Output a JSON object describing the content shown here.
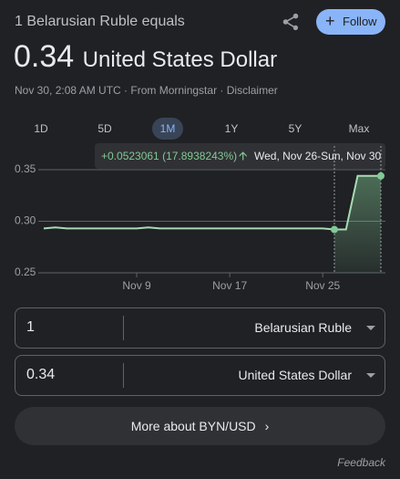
{
  "header": {
    "title": "1 Belarusian Ruble equals",
    "value": "0.34",
    "unit": "United States Dollar",
    "source": "Nov 30, 2:08 AM UTC · From Morningstar · ",
    "disclaimer": "Disclaimer",
    "follow": "Follow"
  },
  "tabs": [
    "1D",
    "5D",
    "1M",
    "1Y",
    "5Y",
    "Max"
  ],
  "tooltip": {
    "change": "+0.0523061 (17.8938243%)",
    "range": "Wed, Nov 26-Sun, Nov 30"
  },
  "chart_data": {
    "type": "line",
    "categories": [
      null,
      null,
      null,
      null,
      null,
      null,
      null,
      null,
      "Nov 9",
      null,
      null,
      null,
      null,
      null,
      null,
      null,
      "Nov 17",
      null,
      null,
      null,
      null,
      null,
      null,
      null,
      "Nov 25",
      null,
      null,
      null,
      null,
      null
    ],
    "series": [
      {
        "color": "#a8dab5",
        "values": [
          0.293,
          0.294,
          0.293,
          0.293,
          0.293,
          0.293,
          0.293,
          0.293,
          0.293,
          0.294,
          0.293,
          0.293,
          0.293,
          0.293,
          0.293,
          0.293,
          0.293,
          0.293,
          0.293,
          0.293,
          0.293,
          0.293,
          0.293,
          0.293,
          0.293,
          0.292,
          0.292,
          0.344,
          0.344,
          0.344
        ]
      }
    ],
    "ylim": [
      0.25,
      0.35
    ],
    "yticks": [
      0.25,
      {
        "value": 0.3,
        "label": "0.30"
      },
      0.35
    ],
    "grid": true
  },
  "converter": [
    {
      "amount": "1",
      "currency": "Belarusian Ruble"
    },
    {
      "amount": "0.34",
      "currency": "United States Dollar"
    }
  ],
  "more": "More about BYN/USD",
  "feedback": "Feedback"
}
